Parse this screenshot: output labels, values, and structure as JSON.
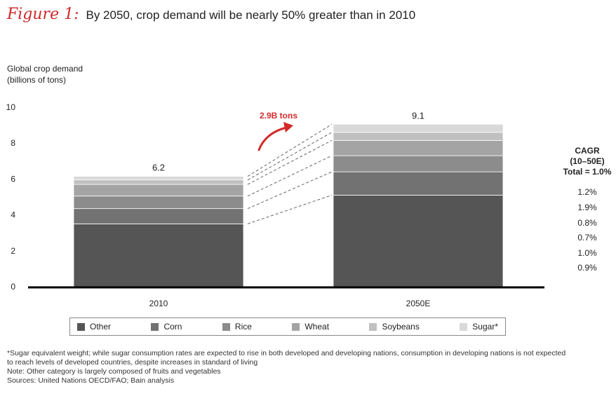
{
  "figure": {
    "label": "Figure 1:",
    "title": "By 2050, crop demand will be nearly 50% greater than in 2010"
  },
  "axis": {
    "ylabel_line1": "Global crop demand",
    "ylabel_line2": "(billions of tons)"
  },
  "chart_data": {
    "type": "bar",
    "stacked": true,
    "categories": [
      "2010",
      "2050E"
    ],
    "totals_labels": [
      "6.2",
      "9.1"
    ],
    "ylim": [
      0,
      10
    ],
    "yticks": [
      0,
      2,
      4,
      6,
      8,
      10
    ],
    "grid": false,
    "legend_position": "bottom",
    "series": [
      {
        "name": "Other",
        "values": [
          3.5,
          5.1
        ],
        "color": "#555555"
      },
      {
        "name": "Corn",
        "values": [
          0.85,
          1.3
        ],
        "color": "#727272"
      },
      {
        "name": "Rice",
        "values": [
          0.7,
          0.9
        ],
        "color": "#8c8c8c"
      },
      {
        "name": "Wheat",
        "values": [
          0.65,
          0.85
        ],
        "color": "#a4a4a4"
      },
      {
        "name": "Soybeans",
        "values": [
          0.25,
          0.45
        ],
        "color": "#c0c0c0"
      },
      {
        "name": "Sugar*",
        "values": [
          0.2,
          0.45
        ],
        "color": "#d9d9d9"
      }
    ],
    "annotation": "2.9B tons",
    "annotation_color": "#d42a2a"
  },
  "cagr": {
    "title_line1": "CAGR",
    "title_line2": "(10–50E)",
    "title_line3": "Total = 1.0%",
    "values": [
      "1.2%",
      "1.9%",
      "0.8%",
      "0.7%",
      "1.0%",
      "0.9%"
    ]
  },
  "notes": {
    "line1": "*Sugar equivalent weight; while sugar consumption rates are expected to rise in both developed and developing nations, consumption in developing nations is not expected",
    "line2": "to reach levels of developed countries, despite increases in standard of living",
    "line3": "Note: Other category is largely composed of fruits and vegetables",
    "line4": "Sources: United Nations OECD/FAO; Bain analysis"
  }
}
